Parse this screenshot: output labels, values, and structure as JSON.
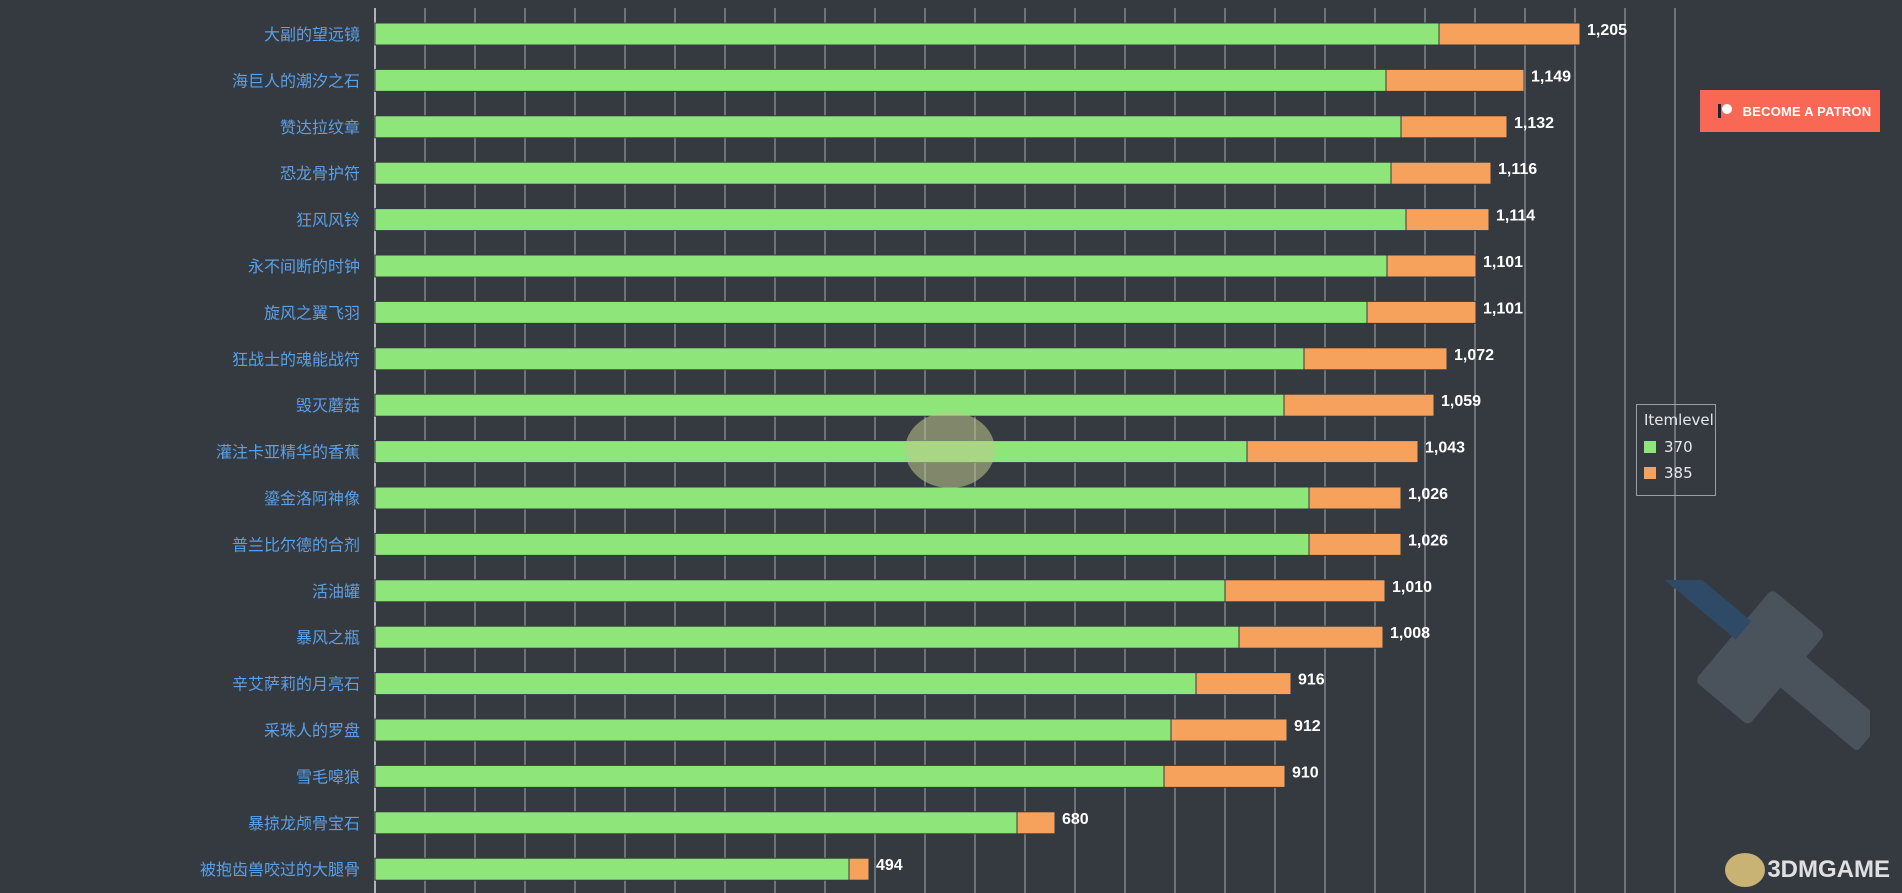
{
  "patron_button": {
    "label": "BECOME A PATRON",
    "icon": "patreon-icon"
  },
  "legend": {
    "title": "Itemlevel",
    "items": [
      {
        "label": "370",
        "color": "#8ee67a"
      },
      {
        "label": "385",
        "color": "#f6a15c"
      }
    ]
  },
  "watermark": {
    "text": "3DMGAME"
  },
  "colors": {
    "background": "#353940",
    "gridline": "#cfd3d8",
    "category_text": "#5aa0e6",
    "total_text": "#ffffff"
  },
  "chart_data": {
    "type": "bar",
    "orientation": "horizontal",
    "stacked": true,
    "categories": [
      "大副的望远镜",
      "海巨人的潮汐之石",
      "赞达拉纹章",
      "恐龙骨护符",
      "狂风风铃",
      "永不间断的时钟",
      "旋风之翼飞羽",
      "狂战士的魂能战符",
      "毁灭蘑菇",
      "灌注卡亚精华的香蕉",
      "鎏金洛阿神像",
      "普兰比尔德的合剂",
      "活油罐",
      "暴风之瓶",
      "辛艾萨莉的月亮石",
      "采珠人的罗盘",
      "雪毛嗥狼",
      "暴掠龙颅骨宝石",
      "被抱齿兽咬过的大腿骨"
    ],
    "series": [
      {
        "name": "370",
        "values": [
          1064,
          1011,
          1026,
          1016,
          1031,
          1012,
          992,
          929,
          909,
          872,
          934,
          934,
          850,
          864,
          821,
          796,
          789,
          642,
          474
        ]
      },
      {
        "name": "385",
        "values": [
          141,
          138,
          106,
          100,
          83,
          89,
          109,
          143,
          150,
          171,
          92,
          92,
          160,
          144,
          95,
          116,
          121,
          38,
          20
        ]
      }
    ],
    "totals": [
      "1,205",
      "1,149",
      "1,132",
      "1,116",
      "1,114",
      "1,101",
      "1,101",
      "1,072",
      "1,059",
      "1,043",
      "1,026",
      "1,026",
      "1,010",
      "1,008",
      "916",
      "912",
      "910",
      "680",
      "494"
    ],
    "xlim": [
      0,
      1300
    ],
    "gridline_step": 50,
    "grid": true,
    "legend_position": "right"
  }
}
